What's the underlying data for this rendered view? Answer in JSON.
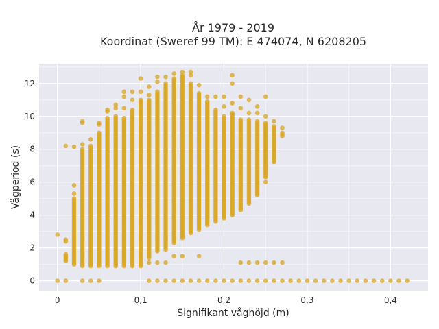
{
  "chart_data": {
    "type": "scatter",
    "title_lines": [
      "År 1979 - 2019",
      "Koordinat (Sweref 99 TM): E 474074, N 6208205"
    ],
    "xlabel": "Signifikant våghöjd (m)",
    "ylabel": "Vågperiod (s)",
    "xlim": [
      -0.022,
      0.445
    ],
    "ylim": [
      -0.6,
      13.2
    ],
    "xticks": [
      0,
      0.1,
      0.2,
      0.3,
      0.4
    ],
    "xtick_labels": [
      "0",
      "0,1",
      "0,2",
      "0,3",
      "0,4"
    ],
    "yticks": [
      0,
      2,
      4,
      6,
      8,
      10,
      12
    ],
    "ytick_labels": [
      "0",
      "2",
      "4",
      "6",
      "8",
      "10",
      "12"
    ],
    "grid": true,
    "background": "#e8e8f0",
    "marker_color": "#daa520",
    "columns": [
      {
        "x": 0.0,
        "dense": [],
        "isolated": [
          0,
          2.8
        ]
      },
      {
        "x": 0.01,
        "dense": [
          [
            1.2,
            1.6
          ]
        ],
        "isolated": [
          0,
          2.4,
          2.5,
          8.2
        ]
      },
      {
        "x": 0.02,
        "dense": [
          [
            1.0,
            5.0
          ]
        ],
        "isolated": [
          5.3,
          5.8,
          8.15
        ]
      },
      {
        "x": 0.03,
        "dense": [
          [
            0.9,
            8.0
          ]
        ],
        "isolated": [
          0,
          8.3,
          9.6,
          9.7
        ]
      },
      {
        "x": 0.04,
        "dense": [
          [
            0.9,
            8.2
          ]
        ],
        "isolated": [
          0,
          8.6
        ]
      },
      {
        "x": 0.05,
        "dense": [
          [
            0.9,
            9.0
          ]
        ],
        "isolated": [
          0,
          9.5,
          9.6
        ]
      },
      {
        "x": 0.06,
        "dense": [
          [
            0.9,
            9.9
          ]
        ],
        "isolated": [
          10.3,
          10.4
        ]
      },
      {
        "x": 0.07,
        "dense": [
          [
            0.9,
            10.0
          ]
        ],
        "isolated": [
          10.5,
          10.7
        ]
      },
      {
        "x": 0.08,
        "dense": [
          [
            0.9,
            9.9
          ]
        ],
        "isolated": [
          10.5,
          11.2,
          11.5
        ]
      },
      {
        "x": 0.09,
        "dense": [
          [
            0.9,
            10.4
          ]
        ],
        "isolated": [
          11.0,
          11.5
        ]
      },
      {
        "x": 0.1,
        "dense": [
          [
            0.9,
            11.0
          ]
        ],
        "isolated": [
          11.5,
          12.3
        ]
      },
      {
        "x": 0.11,
        "dense": [
          [
            1.4,
            11.0
          ]
        ],
        "isolated": [
          0,
          1.1,
          11.3,
          11.8
        ]
      },
      {
        "x": 0.12,
        "dense": [
          [
            1.8,
            11.5
          ]
        ],
        "isolated": [
          0,
          1.1,
          12.1,
          12.4
        ]
      },
      {
        "x": 0.13,
        "dense": [
          [
            1.9,
            12.0
          ]
        ],
        "isolated": [
          0,
          1.1,
          12.4
        ]
      },
      {
        "x": 0.14,
        "dense": [
          [
            2.3,
            12.3
          ]
        ],
        "isolated": [
          0,
          1.5,
          12.6
        ]
      },
      {
        "x": 0.15,
        "dense": [
          [
            2.6,
            12.5
          ]
        ],
        "isolated": [
          0,
          1.5,
          12.7
        ]
      },
      {
        "x": 0.16,
        "dense": [
          [
            2.9,
            12.0
          ]
        ],
        "isolated": [
          0,
          12.5,
          12.7
        ]
      },
      {
        "x": 0.17,
        "dense": [
          [
            3.1,
            11.4
          ]
        ],
        "isolated": [
          0,
          1.5,
          11.9
        ]
      },
      {
        "x": 0.18,
        "dense": [
          [
            3.4,
            10.9
          ]
        ],
        "isolated": [
          0,
          11.2
        ]
      },
      {
        "x": 0.19,
        "dense": [
          [
            3.6,
            10.4
          ]
        ],
        "isolated": [
          0,
          11.2
        ]
      },
      {
        "x": 0.2,
        "dense": [
          [
            3.8,
            10.0
          ]
        ],
        "isolated": [
          0,
          10.6,
          11.2
        ]
      },
      {
        "x": 0.21,
        "dense": [
          [
            4.0,
            10.2
          ]
        ],
        "isolated": [
          0,
          10.8,
          12.0,
          12.5
        ]
      },
      {
        "x": 0.22,
        "dense": [
          [
            4.3,
            9.8
          ]
        ],
        "isolated": [
          0,
          1.1,
          10.5,
          11.2
        ]
      },
      {
        "x": 0.23,
        "dense": [
          [
            4.7,
            9.8
          ]
        ],
        "isolated": [
          0,
          1.1,
          10.2,
          11.0
        ]
      },
      {
        "x": 0.24,
        "dense": [
          [
            5.2,
            9.7
          ]
        ],
        "isolated": [
          0,
          1.1,
          10.2,
          10.6
        ]
      },
      {
        "x": 0.25,
        "dense": [
          [
            6.3,
            9.6
          ]
        ],
        "isolated": [
          0,
          1.1,
          6.0,
          10.0,
          11.2
        ]
      },
      {
        "x": 0.26,
        "dense": [
          [
            7.2,
            9.4
          ]
        ],
        "isolated": [
          0,
          1.1,
          9.7
        ]
      },
      {
        "x": 0.27,
        "dense": [
          [
            8.8,
            9.0
          ]
        ],
        "isolated": [
          0,
          1.1,
          9.3
        ]
      },
      {
        "x": 0.28,
        "dense": [],
        "isolated": [
          0
        ]
      },
      {
        "x": 0.29,
        "dense": [],
        "isolated": [
          0
        ]
      },
      {
        "x": 0.3,
        "dense": [],
        "isolated": [
          0
        ]
      },
      {
        "x": 0.31,
        "dense": [],
        "isolated": [
          0
        ]
      },
      {
        "x": 0.32,
        "dense": [],
        "isolated": [
          0
        ]
      },
      {
        "x": 0.33,
        "dense": [],
        "isolated": [
          0
        ]
      },
      {
        "x": 0.34,
        "dense": [],
        "isolated": [
          0
        ]
      },
      {
        "x": 0.35,
        "dense": [],
        "isolated": [
          0
        ]
      },
      {
        "x": 0.36,
        "dense": [],
        "isolated": [
          0
        ]
      },
      {
        "x": 0.37,
        "dense": [],
        "isolated": [
          0
        ]
      },
      {
        "x": 0.38,
        "dense": [],
        "isolated": [
          0
        ]
      },
      {
        "x": 0.39,
        "dense": [],
        "isolated": [
          0
        ]
      },
      {
        "x": 0.4,
        "dense": [],
        "isolated": [
          0
        ]
      },
      {
        "x": 0.41,
        "dense": [],
        "isolated": [
          0
        ]
      },
      {
        "x": 0.42,
        "dense": [],
        "isolated": [
          0
        ]
      }
    ]
  }
}
